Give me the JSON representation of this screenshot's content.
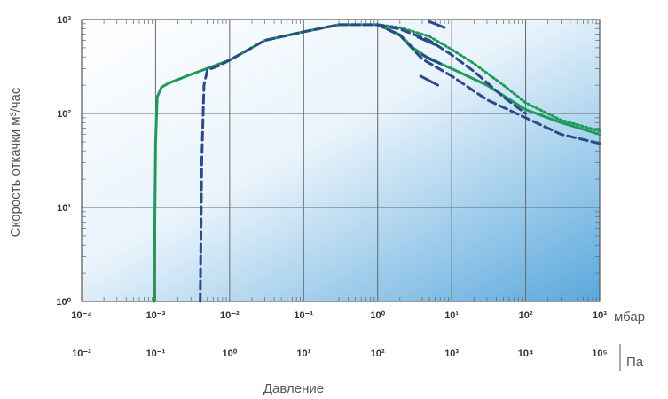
{
  "chart_data": {
    "type": "line",
    "xscale": "log",
    "yscale": "log",
    "xlim": [
      0.0001,
      1000
    ],
    "ylim": [
      1,
      1000
    ],
    "xlabel": "Давление",
    "ylabel": "Скорость откачки м³/час",
    "x_unit_primary": "мбар",
    "x_unit_secondary": "Па",
    "x_ticks_mbar": [
      "10⁻⁴",
      "10⁻³",
      "10⁻²",
      "10⁻¹",
      "10⁰",
      "10¹",
      "10²",
      "10³"
    ],
    "x_ticks_pa": [
      "10⁻²",
      "10⁻¹",
      "10⁰",
      "10¹",
      "10²",
      "10³",
      "10⁴",
      "10⁵"
    ],
    "y_ticks": [
      "10⁰",
      "10¹",
      "10²",
      "10³"
    ],
    "grid": true,
    "colors": {
      "green": "#1f9a5a",
      "navy": "#2a4a8a",
      "plot_bg_light": "#ffffff",
      "plot_bg_dark": "#5aa8dc"
    },
    "series": [
      {
        "style": "green-solid",
        "color": "#1f9a5a",
        "dash": "",
        "x": [
          0.00095,
          0.001,
          0.00105,
          0.0012,
          0.0015,
          0.003,
          0.01,
          0.03,
          0.1,
          0.3,
          1,
          2,
          3,
          5,
          10,
          30,
          100,
          300,
          1000
        ],
        "y": [
          1,
          50,
          150,
          190,
          210,
          260,
          370,
          600,
          740,
          880,
          880,
          690,
          500,
          380,
          300,
          200,
          110,
          80,
          60
        ]
      },
      {
        "style": "navy-dashed",
        "color": "#2a4a8a",
        "dash": "9,5",
        "x": [
          0.004,
          0.0042,
          0.0045,
          0.005,
          0.007,
          0.01,
          0.03,
          0.1,
          0.3,
          1,
          2,
          4,
          10,
          30,
          100,
          300,
          1000
        ],
        "y": [
          1,
          30,
          200,
          290,
          320,
          370,
          600,
          740,
          880,
          880,
          680,
          380,
          250,
          140,
          90,
          60,
          48
        ]
      },
      {
        "style": "green-dotted",
        "color": "#1f9a5a",
        "dash": "2,3",
        "x": [
          1,
          2,
          5,
          10,
          20,
          50,
          100,
          300,
          1000
        ],
        "y": [
          880,
          820,
          660,
          480,
          340,
          200,
          130,
          85,
          65
        ]
      },
      {
        "style": "navy-dashed-2",
        "color": "#2a4a8a",
        "dash": "9,5",
        "x": [
          1,
          2,
          5,
          10,
          20,
          50,
          100
        ],
        "y": [
          880,
          790,
          600,
          420,
          280,
          150,
          100
        ]
      }
    ],
    "annotations": [
      {
        "style": "navy-dash-mark",
        "x": [
          5,
          8
        ],
        "y": [
          950,
          820
        ]
      },
      {
        "style": "navy-dash-mark",
        "x": [
          3.5,
          6
        ],
        "y": [
          650,
          540
        ]
      },
      {
        "style": "navy-dash-mark",
        "x": [
          4,
          7
        ],
        "y": [
          420,
          340
        ]
      },
      {
        "style": "navy-dash-mark",
        "x": [
          3.8,
          6.5
        ],
        "y": [
          250,
          200
        ]
      }
    ]
  }
}
